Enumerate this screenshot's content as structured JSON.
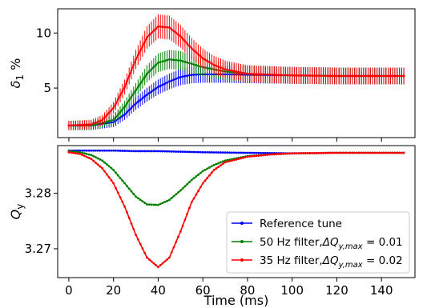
{
  "chart_data": [
    {
      "type": "line",
      "title": "",
      "xlabel": "",
      "ylabel_symbol": "δ",
      "ylabel_sub": "1",
      "ylabel_rest": " %",
      "xlim": [
        -5,
        155
      ],
      "ylim": [
        0.5,
        12.2
      ],
      "xticks": [
        0,
        20,
        40,
        60,
        80,
        100,
        120,
        140
      ],
      "yticks": [
        5,
        10
      ],
      "ytick_labels": [
        "5",
        "10"
      ],
      "error_bars": true,
      "series": [
        {
          "color": "#0000ff",
          "x": [
            0,
            10,
            20,
            25,
            30,
            35,
            40,
            45,
            50,
            55,
            60,
            70,
            80,
            100,
            120,
            150
          ],
          "y": [
            1.6,
            1.6,
            1.9,
            2.6,
            3.6,
            4.4,
            5.1,
            5.6,
            6.0,
            6.2,
            6.25,
            6.25,
            6.2,
            6.15,
            6.1,
            6.1
          ]
        },
        {
          "color": "#008000",
          "x": [
            0,
            10,
            20,
            25,
            30,
            35,
            40,
            45,
            50,
            55,
            60,
            70,
            80,
            100,
            120,
            150
          ],
          "y": [
            1.6,
            1.6,
            2.1,
            3.3,
            4.8,
            6.3,
            7.3,
            7.6,
            7.5,
            7.2,
            6.9,
            6.5,
            6.3,
            6.15,
            6.1,
            6.1
          ]
        },
        {
          "color": "#ff0000",
          "x": [
            0,
            10,
            15,
            20,
            25,
            30,
            35,
            40,
            45,
            50,
            55,
            60,
            65,
            70,
            80,
            100,
            120,
            150
          ],
          "y": [
            1.6,
            1.7,
            2.1,
            3.2,
            5.1,
            7.6,
            9.6,
            10.6,
            10.5,
            9.7,
            8.6,
            7.7,
            7.1,
            6.7,
            6.3,
            6.15,
            6.1,
            6.1
          ]
        }
      ]
    },
    {
      "type": "line",
      "title": "",
      "xlabel": "Time (ms)",
      "ylabel_symbol": "Q",
      "ylabel_sub": "y",
      "ylabel_rest": "",
      "xlim": [
        -5,
        155
      ],
      "ylim": [
        3.2648,
        3.2886
      ],
      "xticks": [
        0,
        20,
        40,
        60,
        80,
        100,
        120,
        140
      ],
      "xtick_labels": [
        "0",
        "20",
        "40",
        "60",
        "80",
        "100",
        "120",
        "140"
      ],
      "yticks": [
        3.27,
        3.28
      ],
      "ytick_labels": [
        "3.27",
        "3.28"
      ],
      "legend": "lower-right",
      "series": [
        {
          "name_main": "Reference tune",
          "name_delta": "",
          "name_eq": "",
          "color": "#0000ff",
          "x": [
            0,
            10,
            20,
            30,
            40,
            50,
            60,
            80,
            100,
            120,
            150
          ],
          "y": [
            3.2877,
            3.2877,
            3.2877,
            3.2876,
            3.2876,
            3.2875,
            3.2874,
            3.2873,
            3.2872,
            3.2873,
            3.2873
          ]
        },
        {
          "name_main": "50 Hz filter,",
          "name_delta": "ΔQ",
          "name_sub": "y,max",
          "name_eq": " = 0.01",
          "color": "#008000",
          "x": [
            0,
            5,
            10,
            15,
            20,
            25,
            30,
            35,
            40,
            45,
            50,
            55,
            60,
            65,
            70,
            80,
            90,
            100,
            120,
            150
          ],
          "y": [
            3.2876,
            3.2874,
            3.2869,
            3.2859,
            3.2842,
            3.2818,
            3.2794,
            3.278,
            3.2779,
            3.2788,
            3.2805,
            3.2824,
            3.284,
            3.2851,
            3.2859,
            3.2867,
            3.287,
            3.2872,
            3.2873,
            3.2873
          ]
        },
        {
          "name_main": "35 Hz filter,",
          "name_delta": "ΔQ",
          "name_sub": "y,max",
          "name_eq": " = 0.02",
          "color": "#ff0000",
          "x": [
            0,
            5,
            10,
            15,
            20,
            25,
            30,
            35,
            40,
            45,
            50,
            55,
            60,
            65,
            70,
            80,
            90,
            100,
            120,
            150
          ],
          "y": [
            3.2874,
            3.2871,
            3.2862,
            3.2845,
            3.2818,
            3.2776,
            3.2725,
            3.2684,
            3.2667,
            3.2684,
            3.2731,
            3.2784,
            3.2818,
            3.2842,
            3.2856,
            3.2866,
            3.287,
            3.2872,
            3.2873,
            3.2873
          ]
        }
      ]
    }
  ]
}
